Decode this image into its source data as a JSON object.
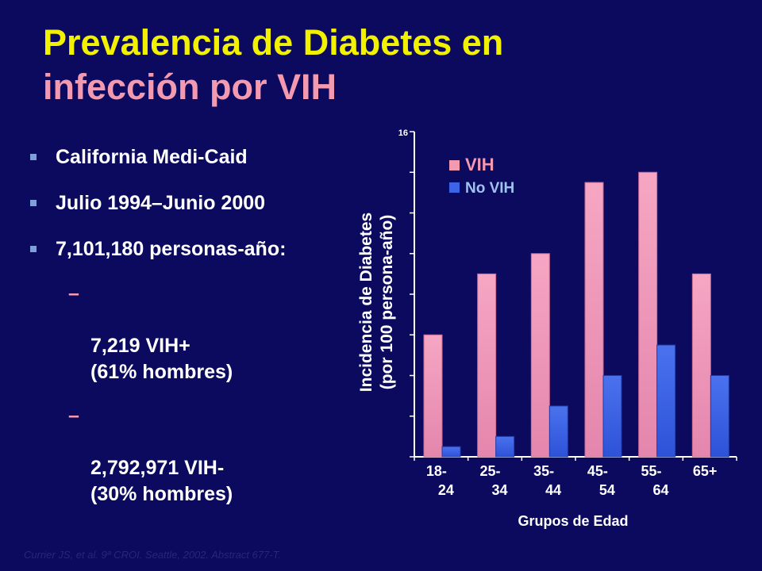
{
  "title": {
    "line1": "Prevalencia de Diabetes en",
    "line2": "infección por VIH"
  },
  "bullets": [
    "California Medi-Caid",
    "Julio 1994–Junio 2000",
    "7,101,180 personas-año:"
  ],
  "subbullets": [
    "7,219 VIH+\n(61% hombres)",
    "2,792,971 VIH-\n(30% hombres)"
  ],
  "dash": "–",
  "footnote": "Currier JS, et al. 9ª CROI. Seattle, 2002. Abstract 677-T.",
  "colors": {
    "background": "#0b0a5e",
    "title_line1": "#f2f200",
    "title_line2": "#f49ab0",
    "vih": "#f49ab0",
    "no_vih": "#3c64e6",
    "no_vih_legend_text": "#9fc3ee"
  },
  "chart_data": {
    "type": "bar",
    "categories": [
      "18-\n24",
      "25-\n34",
      "35-\n44",
      "45-\n54",
      "55-\n64",
      "65+"
    ],
    "series": [
      {
        "name": "VIH",
        "values": [
          6,
          9,
          10,
          13.5,
          14,
          9
        ]
      },
      {
        "name": "No VIH",
        "values": [
          0.5,
          1,
          2.5,
          4,
          5.5,
          4
        ]
      }
    ],
    "ylabel_line1": "Incidencia de Diabetes",
    "ylabel_line2": "(por 100 persona-año)",
    "xlabel": "Grupos de Edad",
    "ylim": [
      0,
      16
    ],
    "y_tick_label": "16",
    "legend_position": "top-left",
    "grid": false
  }
}
